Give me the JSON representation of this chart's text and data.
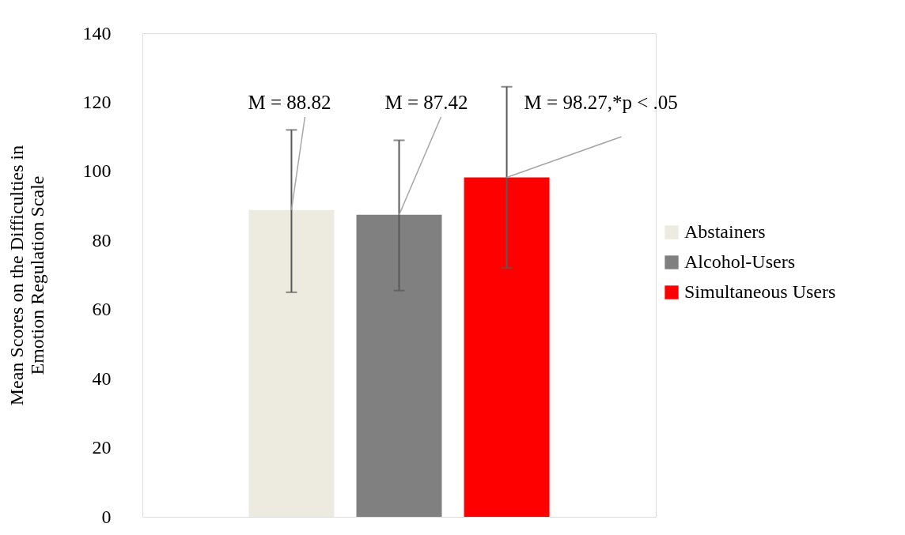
{
  "chart_data": {
    "type": "bar",
    "ylabel": "Mean Scores on the Difficulties in Emotion Regulation Scale",
    "categories": [
      null
    ],
    "series": [
      {
        "name": "Abstainers",
        "color": "#edebe0",
        "values": [
          88.82
        ],
        "errors": [
          [
            65,
            112
          ]
        ]
      },
      {
        "name": "Alcohol-Users",
        "color": "#808080",
        "values": [
          87.42
        ],
        "errors": [
          [
            65.5,
            109
          ]
        ]
      },
      {
        "name": "Simultaneous Users",
        "color": "#ff0000",
        "values": [
          98.27
        ],
        "errors": [
          [
            72,
            124.5
          ]
        ]
      }
    ],
    "annotations": [
      "M = 88.82",
      "M = 87.42",
      "M = 98.27,*p < .05"
    ],
    "ylim": [
      0,
      140
    ],
    "yticks": [
      0,
      20,
      40,
      60,
      80,
      100,
      120,
      140
    ],
    "grid": false,
    "legend": "right"
  }
}
